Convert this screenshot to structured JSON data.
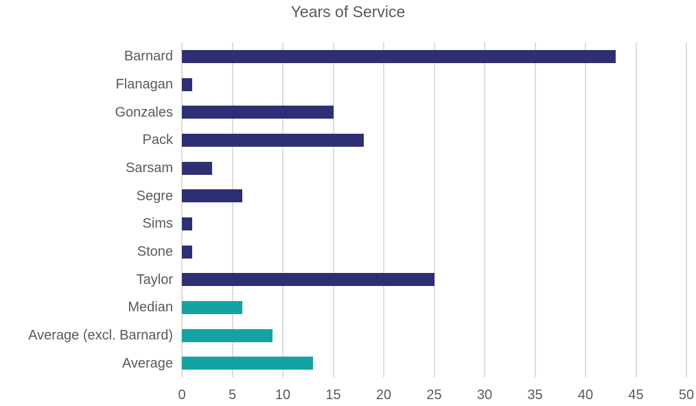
{
  "chart_data": {
    "type": "bar",
    "orientation": "horizontal",
    "title": "Years of Service",
    "categories": [
      "Barnard",
      "Flanagan",
      "Gonzales",
      "Pack",
      "Sarsam",
      "Segre",
      "Sims",
      "Stone",
      "Taylor",
      "Median",
      "Average (excl. Barnard)",
      "Average"
    ],
    "values": [
      43,
      1,
      15,
      18,
      3,
      6,
      1,
      1,
      25,
      6,
      9,
      13
    ],
    "bar_color_keys": [
      "navy",
      "navy",
      "navy",
      "navy",
      "navy",
      "navy",
      "navy",
      "navy",
      "navy",
      "teal",
      "teal",
      "teal"
    ],
    "xlabel": "",
    "ylabel": "",
    "xlim": [
      0,
      50
    ],
    "xticks": [
      0,
      5,
      10,
      15,
      20,
      25,
      30,
      35,
      40,
      45,
      50
    ],
    "grid": true,
    "legend": "none"
  },
  "colors": {
    "navy": "#2e2f73",
    "teal": "#14a3a3",
    "gridline": "#dcdcdf",
    "text": "#595959",
    "background": "#ffffff"
  }
}
